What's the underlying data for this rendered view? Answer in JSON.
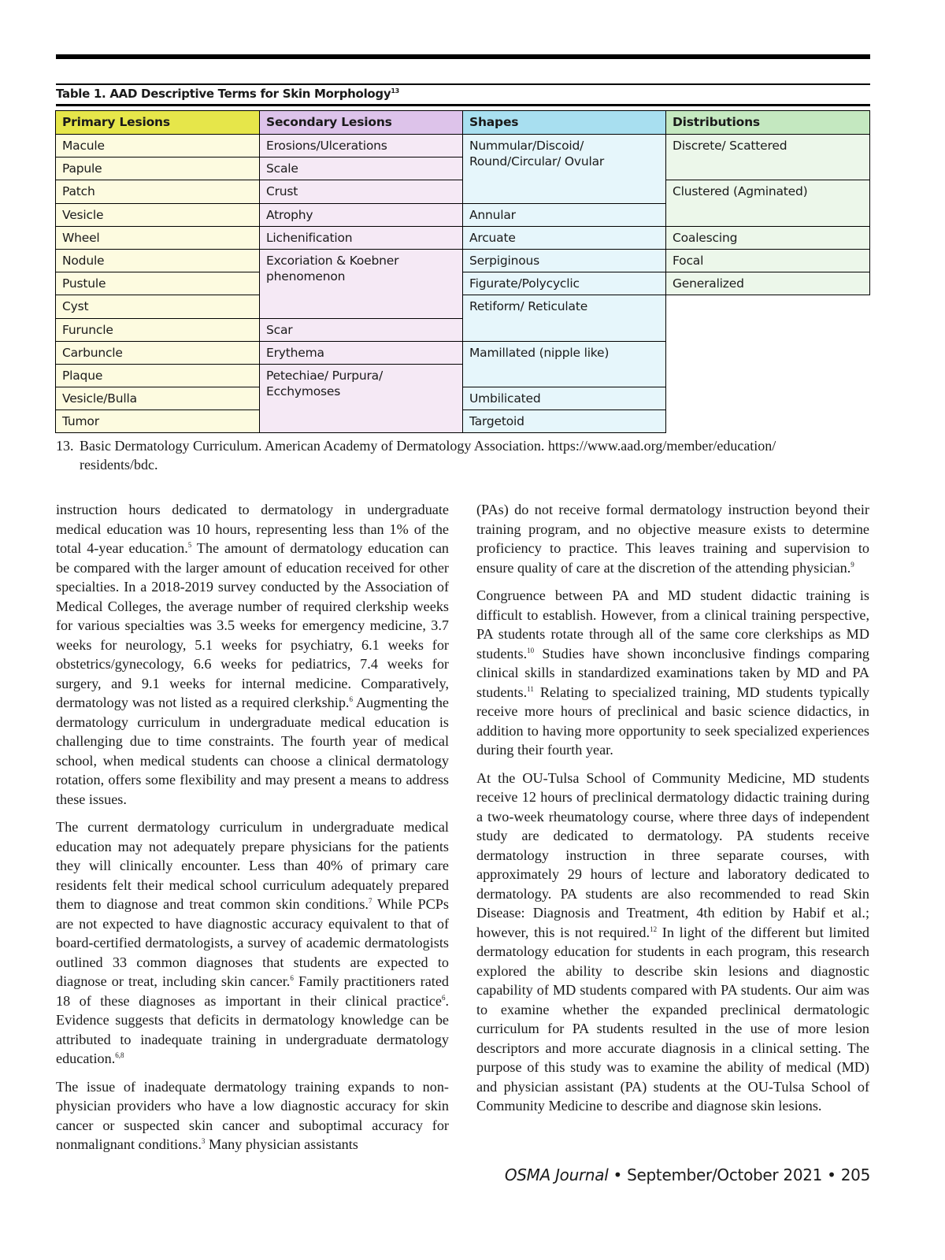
{
  "table": {
    "title": "Table 1. AAD Descriptive Terms for Skin Morphology",
    "title_sup": "13",
    "headers": [
      "Primary Lesions",
      "Secondary Lesions",
      "Shapes",
      "Distributions"
    ],
    "primary": [
      "Macule",
      "Papule",
      "Patch",
      "Vesicle",
      "Wheel",
      "Nodule",
      "Pustule",
      "Cyst",
      "Furuncle",
      "Carbuncle",
      "Plaque",
      "Vesicle/Bulla",
      "Tumor"
    ],
    "secondary": [
      "Erosions/Ulcerations",
      "Scale",
      "Crust",
      "Atrophy",
      "Lichenification",
      "Excoriation & Koebner phenomenon",
      "Scar",
      "Erythema",
      "Petechiae/ Purpura/ Ecchymoses"
    ],
    "shapes": [
      "Nummular/Discoid/ Round/Circular/ Ovular",
      "Annular",
      "Arcuate",
      "Serpiginous",
      "Figurate/Polycyclic",
      "Retiform/ Reticulate",
      "Mamillated (nipple like)",
      "Umbilicated",
      "Targetoid"
    ],
    "distributions": [
      "Discrete/ Scattered",
      "Clustered (Agminated)",
      "Coalescing",
      "Focal",
      "Generalized"
    ]
  },
  "footnote": {
    "number": "13.",
    "text": "Basic Dermatology Curriculum. American Academy of Dermatology Association. https://www.aad.org/member/education/",
    "text2": "residents/bdc."
  },
  "left_column": [
    [
      "instruction hours dedicated to dermatology in undergraduate medical education was 10 hours, representing less than 1% of the total 4-year education.",
      {
        "sup": "5"
      },
      " The amount of dermatology education can be compared with the larger amount of education received for other specialties. In a 2018-2019 survey conducted by the Association of Medical Colleges, the average number of required clerkship weeks for various specialties was 3.5 weeks for emergency medicine, 3.7 weeks for neurology, 5.1 weeks for psychiatry, 6.1 weeks for obstetrics/gynecology, 6.6 weeks for pediatrics, 7.4 weeks for surgery, and 9.1 weeks for internal medicine. Comparatively, dermatology was not listed as a required clerkship.",
      {
        "sup": "6"
      },
      " Augmenting the dermatology curriculum in undergraduate medical education is challenging due to time constraints. The fourth year of medical school, when medical students can choose a clinical dermatology rotation, offers some flexibility and may present a means to address these issues."
    ],
    [
      "The current dermatology curriculum in undergraduate medical education may not adequately prepare physicians for the patients they will clinically encounter. Less than 40% of primary care residents felt their medical school curriculum adequately prepared them to diagnose and treat common skin conditions.",
      {
        "sup": "7"
      },
      " While PCPs are not expected to have diagnostic accuracy equivalent to that of board-certified dermatologists, a survey of academic dermatologists outlined 33 common diagnoses that students are expected to diagnose or treat, including skin cancer.",
      {
        "sup": "6"
      },
      " Family practitioners rated 18 of these diagnoses as important in their clinical practice",
      {
        "sup": "6"
      },
      ". Evidence suggests that deficits in dermatology knowledge can be attributed to inadequate training in undergraduate dermatology education.",
      {
        "sup": "6,8"
      }
    ],
    [
      "The issue of inadequate dermatology training expands to non-physician providers who have a low diagnostic accuracy for skin cancer or suspected skin cancer and suboptimal accuracy for nonmalignant conditions.",
      {
        "sup": "3"
      },
      " Many physician assistants"
    ]
  ],
  "right_column": [
    [
      "(PAs) do not receive formal dermatology instruction beyond their training program, and no objective measure exists to determine proficiency to practice. This leaves training and supervision to ensure quality of care at the discretion of the attending physician.",
      {
        "sup": "9"
      }
    ],
    [
      "Congruence between PA and MD student didactic training is difficult to establish. However, from a clinical training perspective, PA students rotate through all of the same core clerkships as MD students.",
      {
        "sup": "10"
      },
      " Studies have shown inconclusive findings comparing clinical skills in standardized examinations taken by MD and PA students.",
      {
        "sup": "11"
      },
      " Relating to specialized training, MD students typically receive more hours of preclinical and basic science didactics, in addition to having more opportunity to seek specialized experiences during their fourth year."
    ],
    [
      "At the OU-Tulsa School of Community Medicine, MD students receive 12 hours of preclinical dermatology didactic training during a two-week rheumatology course, where three days of independent study are dedicated to dermatology. PA students receive dermatology instruction in three separate courses, with approximately 29 hours of lecture and laboratory dedicated to dermatology. PA students are also recommended to read Skin Disease: Diagnosis and Treatment, 4th edition by Habif et al.; however, this is not required.",
      {
        "sup": "12"
      },
      " In light of the different but limited dermatology education for students in each program, this research explored the ability to describe skin lesions and diagnostic capability of MD students compared with PA students. Our aim was to examine whether the expanded preclinical dermatologic curriculum for PA students resulted in the use of more lesion descriptors and more accurate diagnosis in a clinical setting. The purpose of this study was to examine the ability of medical (MD) and physician assistant (PA) students at the OU-Tulsa School of Community Medicine to describe and diagnose skin lesions."
    ]
  ],
  "footer": {
    "journal": "OSMA Journal",
    "issue": " • September/October 2021 • ",
    "page": "205"
  }
}
